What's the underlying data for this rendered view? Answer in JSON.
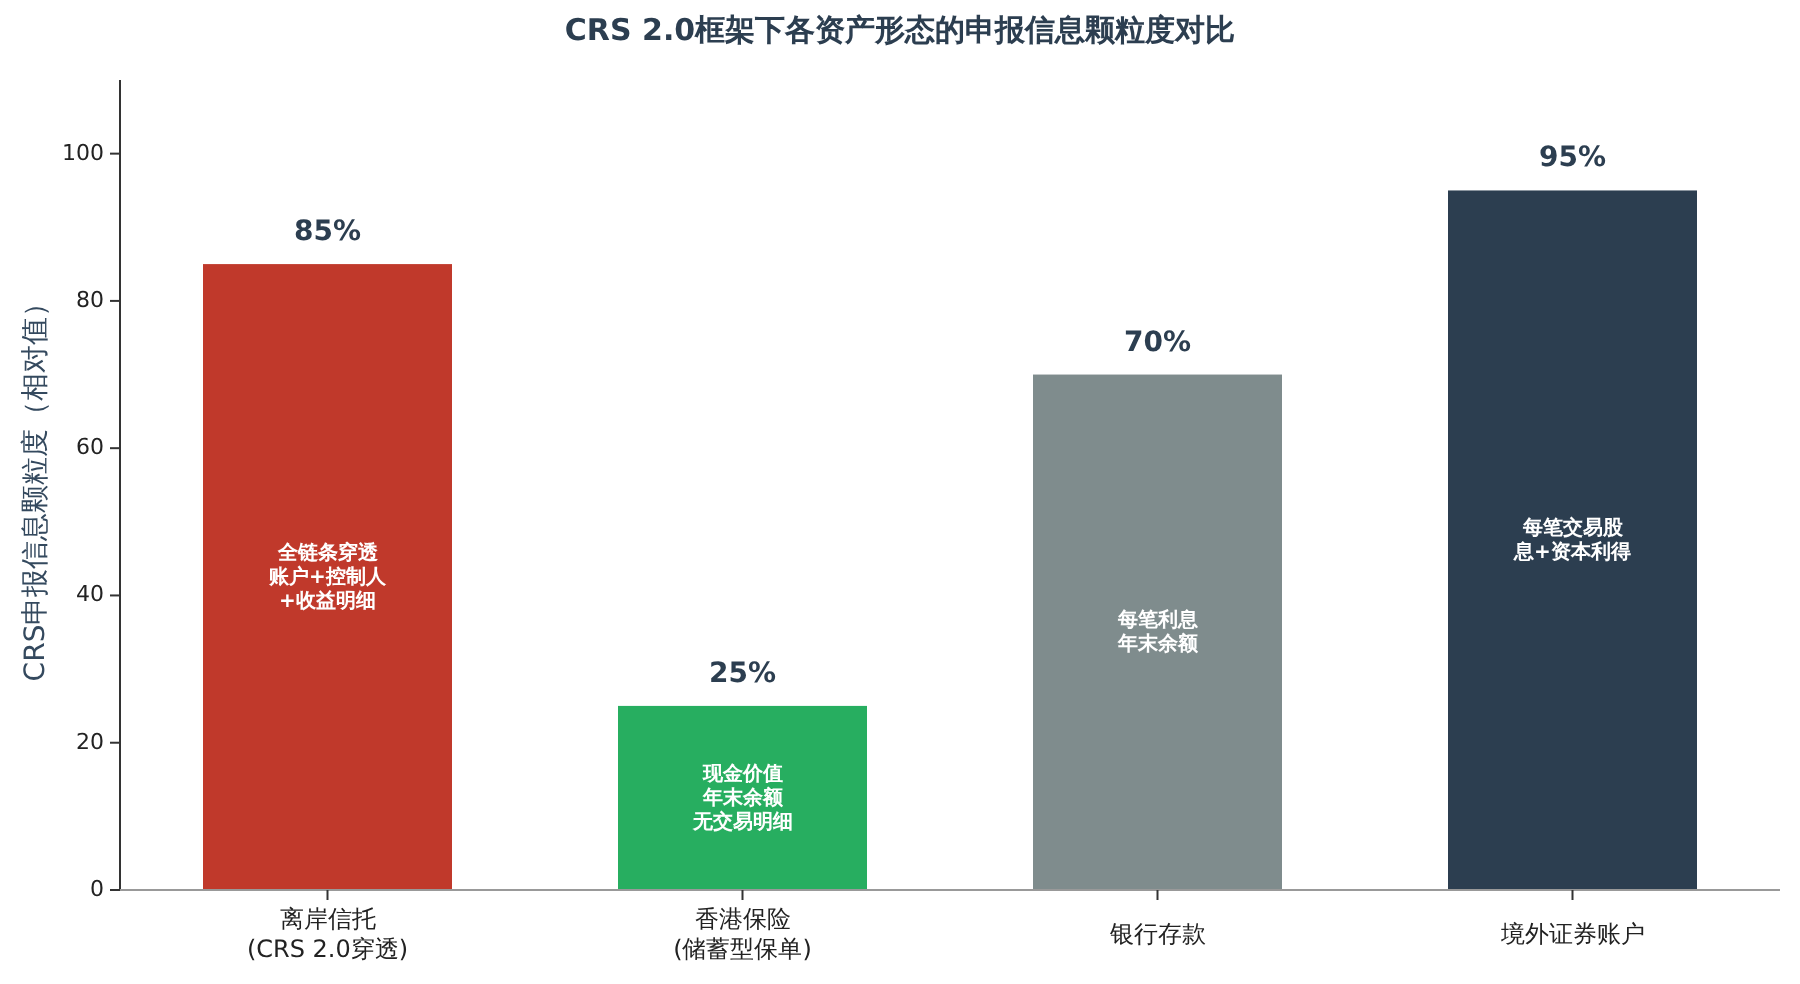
{
  "chart_data": {
    "type": "bar",
    "title": "CRS 2.0框架下各资产形态的申报信息颗粒度对比",
    "ylabel": "CRS申报信息颗粒度（相对值）",
    "categories": [
      "离岸信托\n(CRS 2.0穿透)",
      "香港保险\n(储蓄型保单)",
      "银行存款",
      "境外证券账户"
    ],
    "values": [
      85,
      25,
      70,
      95
    ],
    "colors": [
      "#c0392b",
      "#27ae60",
      "#7f8c8d",
      "#2c3e50"
    ],
    "value_labels": [
      "85%",
      "25%",
      "70%",
      "95%"
    ],
    "ylim": [
      0,
      110
    ],
    "yticks": [
      0,
      20,
      40,
      60,
      80,
      100
    ],
    "grid": false,
    "annotations": [
      "全链条穿透账户+控制人+收益明细",
      "现金价值年末余额无交易明细",
      "每笔利息年末余额",
      "每笔交易股息+资本利得"
    ]
  }
}
